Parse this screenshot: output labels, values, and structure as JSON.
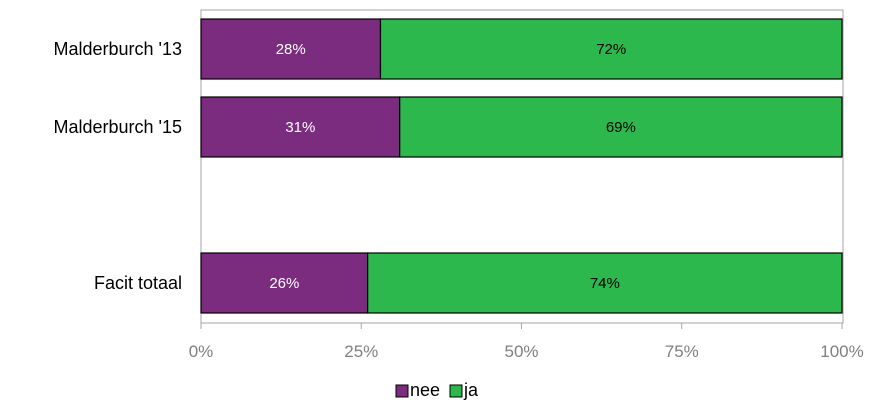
{
  "chart_data": {
    "type": "bar",
    "orientation": "horizontal",
    "stacked": true,
    "title": "",
    "xlabel": "",
    "ylabel": "",
    "xlim": [
      0,
      100
    ],
    "x_ticks": [
      "0%",
      "25%",
      "50%",
      "75%",
      "100%"
    ],
    "categories": [
      "Malderburch '13",
      "Malderburch '15",
      "",
      "Facit totaal"
    ],
    "series": [
      {
        "name": "nee",
        "color": "#7b2c7f",
        "label_color": "#ffffff",
        "values": [
          28,
          31,
          null,
          26
        ],
        "labels": [
          "28%",
          "31%",
          "",
          "26%"
        ]
      },
      {
        "name": "ja",
        "color": "#2db84d",
        "label_color": "#000000",
        "values": [
          72,
          69,
          null,
          74
        ],
        "labels": [
          "72%",
          "69%",
          "",
          "74%"
        ]
      }
    ],
    "grid": false,
    "legend": "bottom-center"
  }
}
